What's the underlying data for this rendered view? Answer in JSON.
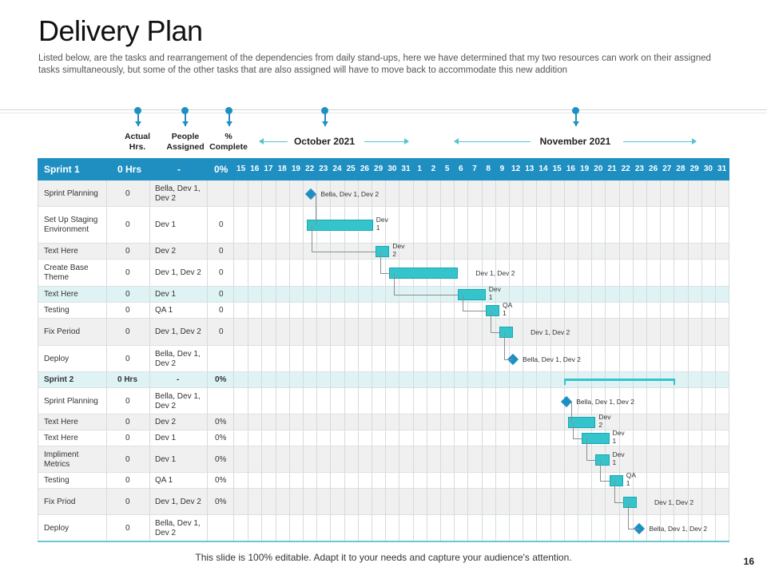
{
  "title": "Delivery Plan",
  "subtitle": "Listed below, are the tasks and rearrangement  of the dependencies from daily stand-ups, here we have determined that my two resources can work on their assigned tasks simultaneously, but some of the other tasks that are also assigned will have to move back to accommodate this new addition",
  "columns": {
    "actual": "Actual Hrs.",
    "people": "People Assigned",
    "complete": "% Complete"
  },
  "months": {
    "october": "October 2021",
    "november": "November 2021"
  },
  "footer": "This slide is 100% editable. Adapt it to your needs and capture your audience's attention.",
  "page_number": "16",
  "colors": {
    "accent": "#1f8fc2",
    "bar": "#35c4cc",
    "band": "#dff3f5",
    "row_alt": "#f0f0f0"
  },
  "chart_data": {
    "type": "gantt",
    "days": [
      "15",
      "16",
      "17",
      "18",
      "19",
      "22",
      "23",
      "24",
      "25",
      "26",
      "29",
      "30",
      "31",
      "1",
      "2",
      "5",
      "6",
      "7",
      "8",
      "9",
      "12",
      "13",
      "14",
      "15",
      "16",
      "19",
      "20",
      "21",
      "22",
      "23",
      "26",
      "27",
      "28",
      "29",
      "30",
      "31"
    ],
    "sprint1": {
      "name": "Sprint 1",
      "hours": "0 Hrs",
      "people": "-",
      "complete": "0%"
    },
    "sprint2": {
      "name": "Sprint 2",
      "hours": "0 Hrs",
      "people": "-",
      "complete": "0%"
    },
    "sprint2_span": [
      24,
      32
    ],
    "rows": [
      {
        "task": "Sprint Planning",
        "hours": "0",
        "people": "Bella, Dev 1, Dev 2",
        "complete": "",
        "kind": "milestone",
        "start": 5.6,
        "end": 5.6,
        "label": "Bella, Dev 1, Dev 2"
      },
      {
        "task": "Set Up Staging Environment",
        "hours": "0",
        "people": "Dev 1",
        "complete": "0",
        "kind": "bar",
        "start": 5.3,
        "end": 10.1,
        "label": "Dev 1"
      },
      {
        "task": "Text Here",
        "hours": "0",
        "people": "Dev 2",
        "complete": "0",
        "kind": "bar",
        "start": 10.3,
        "end": 11.3,
        "label": "Dev 2"
      },
      {
        "task": "Create Base Theme",
        "hours": "0",
        "people": "Dev 1, Dev 2",
        "complete": "0",
        "kind": "bar",
        "start": 11.3,
        "end": 16.3,
        "label": "Dev 1, Dev 2"
      },
      {
        "task": "Text Here",
        "hours": "0",
        "people": "Dev 1",
        "complete": "0",
        "kind": "bar",
        "start": 16.3,
        "end": 18.3,
        "label": "Dev 1",
        "highlight": true
      },
      {
        "task": "Testing",
        "hours": "0",
        "people": "QA 1",
        "complete": "0",
        "kind": "bar",
        "start": 18.3,
        "end": 19.3,
        "label": "QA 1"
      },
      {
        "task": "Fix Period",
        "hours": "0",
        "people": "Dev 1, Dev 2",
        "complete": "0",
        "kind": "bar",
        "start": 19.3,
        "end": 20.3,
        "label": "Dev 1, Dev 2"
      },
      {
        "task": "Deploy",
        "hours": "0",
        "people": "Bella, Dev 1, Dev 2",
        "complete": "",
        "kind": "milestone",
        "start": 20.3,
        "end": 20.3,
        "label": "Bella, Dev 1, Dev 2"
      },
      {
        "task": "Sprint Planning",
        "hours": "0",
        "people": "Bella, Dev 1, Dev 2",
        "complete": "",
        "kind": "milestone",
        "start": 24.2,
        "end": 24.2,
        "label": "Bella, Dev 1, Dev 2"
      },
      {
        "task": "Text Here",
        "hours": "0",
        "people": "Dev 2",
        "complete": "0%",
        "kind": "bar",
        "start": 24.3,
        "end": 26.3,
        "label": "Dev 2"
      },
      {
        "task": "Text Here",
        "hours": "0",
        "people": "Dev 1",
        "complete": "0%",
        "kind": "bar",
        "start": 25.3,
        "end": 27.3,
        "label": "Dev 1"
      },
      {
        "task": "Impliment Metrics",
        "hours": "0",
        "people": "Dev 1",
        "complete": "0%",
        "kind": "bar",
        "start": 26.3,
        "end": 27.3,
        "label": "Dev 1"
      },
      {
        "task": "Testing",
        "hours": "0",
        "people": "QA 1",
        "complete": "0%",
        "kind": "bar",
        "start": 27.3,
        "end": 28.3,
        "label": "QA 1"
      },
      {
        "task": "Fix Priod",
        "hours": "0",
        "people": "Dev 1, Dev 2",
        "complete": "0%",
        "kind": "bar",
        "start": 28.3,
        "end": 29.3,
        "label": "Dev 1, Dev 2"
      },
      {
        "task": "Deploy",
        "hours": "0",
        "people": "Bella, Dev 1, Dev 2",
        "complete": "",
        "kind": "milestone",
        "start": 29.5,
        "end": 29.5,
        "label": "Bella, Dev 1, Dev 2"
      }
    ]
  }
}
